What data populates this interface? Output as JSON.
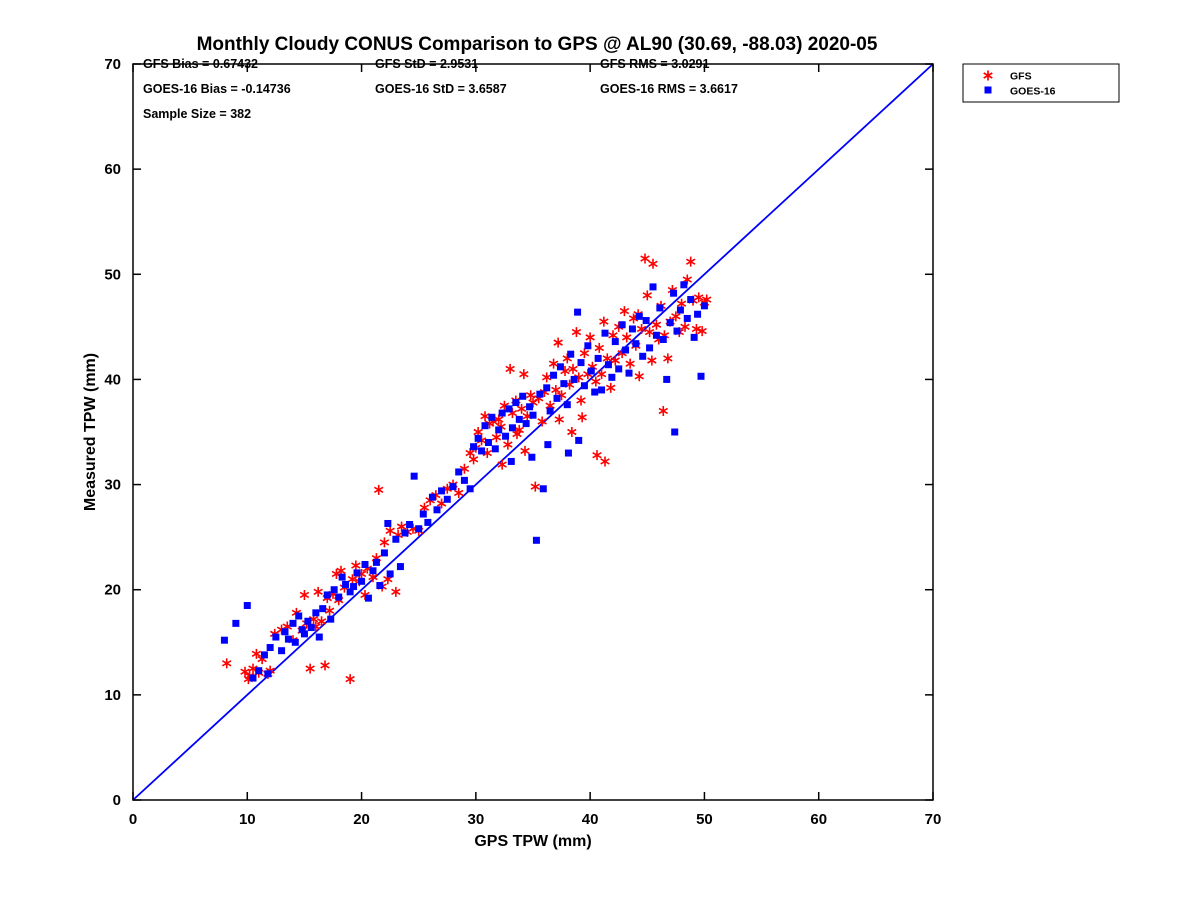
{
  "title": "Monthly Cloudy CONUS Comparison to GPS @ AL90 (30.69, -88.03) 2020-05",
  "stats": {
    "gfs_bias": "GFS Bias = 0.67432",
    "gfs_std": "GFS StD = 2.9531",
    "gfs_rms": "GFS RMS = 3.0291",
    "goes_bias": "GOES-16 Bias = -0.14736",
    "goes_std": "GOES-16 StD = 3.6587",
    "goes_rms": "GOES-16 RMS = 3.6617",
    "sample_size": "Sample Size = 382"
  },
  "axes": {
    "xlabel": "GPS TPW (mm)",
    "ylabel": "Measured TPW (mm)"
  },
  "legend": {
    "items": [
      {
        "label": "GFS",
        "marker": "asterisk",
        "color": "#ff0000"
      },
      {
        "label": "GOES-16",
        "marker": "square",
        "color": "#0000ff"
      }
    ]
  },
  "colors": {
    "gfs": "#ff0000",
    "goes": "#0000ff",
    "identity_line": "#0000ff",
    "axis": "#000000"
  },
  "chart_data": {
    "type": "scatter",
    "title": "Monthly Cloudy CONUS Comparison to GPS @ AL90 (30.69, -88.03) 2020-05",
    "xlabel": "GPS TPW (mm)",
    "ylabel": "Measured TPW (mm)",
    "xlim": [
      0,
      70
    ],
    "ylim": [
      0,
      70
    ],
    "xticks": [
      0,
      10,
      20,
      30,
      40,
      50,
      60,
      70
    ],
    "yticks": [
      0,
      10,
      20,
      30,
      40,
      50,
      60,
      70
    ],
    "grid": false,
    "legend_position": "top-right-outside",
    "sample_size": 382,
    "stats": {
      "gfs": {
        "bias": 0.67432,
        "std": 2.9531,
        "rms": 3.0291
      },
      "goes16": {
        "bias": -0.14736,
        "std": 3.6587,
        "rms": 3.6617
      }
    },
    "reference_line": {
      "from": [
        0,
        0
      ],
      "to": [
        70,
        70
      ],
      "color": "#0000ff"
    },
    "series": [
      {
        "name": "GFS",
        "marker": "asterisk",
        "color": "#ff0000",
        "points": [
          [
            9.8,
            12.2
          ],
          [
            10.2,
            11.8
          ],
          [
            10.5,
            12.5
          ],
          [
            11,
            12.1
          ],
          [
            11.3,
            13.4
          ],
          [
            10.8,
            13.9
          ],
          [
            12,
            12.3
          ],
          [
            12.4,
            15.8
          ],
          [
            8.2,
            13
          ],
          [
            10.1,
            11.5
          ],
          [
            11.8,
            12
          ],
          [
            13,
            16.2
          ],
          [
            13.5,
            16.5
          ],
          [
            14,
            15.2
          ],
          [
            14.3,
            17.8
          ],
          [
            14.8,
            16.1
          ],
          [
            15,
            19.5
          ],
          [
            15.2,
            16.8
          ],
          [
            15.5,
            12.5
          ],
          [
            15.8,
            17.2
          ],
          [
            16,
            16.5
          ],
          [
            16.2,
            19.8
          ],
          [
            16.5,
            17
          ],
          [
            16.8,
            12.8
          ],
          [
            17,
            19.2
          ],
          [
            17.2,
            18
          ],
          [
            17.5,
            19.6
          ],
          [
            17.8,
            21.5
          ],
          [
            18,
            19
          ],
          [
            18.2,
            21.8
          ],
          [
            18.5,
            20.2
          ],
          [
            19,
            11.5
          ],
          [
            19.2,
            21
          ],
          [
            19.5,
            22.3
          ],
          [
            19.8,
            20.8
          ],
          [
            20,
            21.5
          ],
          [
            20.3,
            19.5
          ],
          [
            20.5,
            22
          ],
          [
            21,
            21.2
          ],
          [
            21.3,
            23
          ],
          [
            21.5,
            29.5
          ],
          [
            21.8,
            20.3
          ],
          [
            22,
            24.5
          ],
          [
            22.3,
            21
          ],
          [
            22.5,
            25.6
          ],
          [
            23,
            19.8
          ],
          [
            23.2,
            25.2
          ],
          [
            23.5,
            26
          ],
          [
            24,
            25.5
          ],
          [
            24.5,
            25.8
          ],
          [
            25,
            25.6
          ],
          [
            25.5,
            27.8
          ],
          [
            26,
            28.5
          ],
          [
            26.5,
            29
          ],
          [
            27,
            28.2
          ],
          [
            27.5,
            29.6
          ],
          [
            28,
            30
          ],
          [
            28.5,
            29.2
          ],
          [
            29,
            31.5
          ],
          [
            29.5,
            33
          ],
          [
            29.8,
            32.4
          ],
          [
            30,
            33.5
          ],
          [
            30.2,
            35
          ],
          [
            30.5,
            34.2
          ],
          [
            30.8,
            36.5
          ],
          [
            31,
            33
          ],
          [
            31.2,
            35.8
          ],
          [
            31.5,
            36
          ],
          [
            31.8,
            34.5
          ],
          [
            32,
            36.2
          ],
          [
            32.2,
            35.5
          ],
          [
            32.5,
            37.5
          ],
          [
            32.8,
            33.8
          ],
          [
            33,
            41
          ],
          [
            33.2,
            36.8
          ],
          [
            33.5,
            38
          ],
          [
            33.8,
            35.2
          ],
          [
            34,
            37.2
          ],
          [
            34.2,
            40.5
          ],
          [
            34.5,
            36.5
          ],
          [
            34.8,
            38.5
          ],
          [
            35,
            37.8
          ],
          [
            35.2,
            29.8
          ],
          [
            35.5,
            38.2
          ],
          [
            35.8,
            36
          ],
          [
            34.3,
            33.2
          ],
          [
            33.6,
            34.8
          ],
          [
            32.3,
            31.9
          ],
          [
            36,
            38.8
          ],
          [
            36.2,
            40.2
          ],
          [
            36.5,
            37.5
          ],
          [
            36.8,
            41.5
          ],
          [
            37,
            39
          ],
          [
            37.2,
            43.5
          ],
          [
            37.5,
            38.5
          ],
          [
            37.8,
            40.8
          ],
          [
            38,
            42
          ],
          [
            38.2,
            39.5
          ],
          [
            38.5,
            41
          ],
          [
            38.8,
            44.5
          ],
          [
            39,
            40.2
          ],
          [
            39.2,
            38
          ],
          [
            39.5,
            42.5
          ],
          [
            39.8,
            40.5
          ],
          [
            40,
            44
          ],
          [
            40.2,
            41.2
          ],
          [
            40.5,
            39.8
          ],
          [
            40.8,
            43
          ],
          [
            41,
            40.5
          ],
          [
            41.2,
            45.5
          ],
          [
            41.5,
            42
          ],
          [
            41.8,
            39.2
          ],
          [
            42,
            44.2
          ],
          [
            42.2,
            41.8
          ],
          [
            38.4,
            35
          ],
          [
            39.3,
            36.4
          ],
          [
            41.3,
            32.2
          ],
          [
            40.6,
            32.8
          ],
          [
            37.3,
            36.2
          ],
          [
            42.5,
            45
          ],
          [
            42.8,
            42.5
          ],
          [
            43,
            46.5
          ],
          [
            43.2,
            44
          ],
          [
            43.5,
            41.5
          ],
          [
            43.8,
            45.8
          ],
          [
            44,
            43.2
          ],
          [
            44.2,
            46.2
          ],
          [
            44.5,
            44.8
          ],
          [
            44.8,
            51.5
          ],
          [
            45,
            48
          ],
          [
            45.2,
            44.5
          ],
          [
            45.5,
            51
          ],
          [
            45.8,
            45.2
          ],
          [
            46,
            43.8
          ],
          [
            46.2,
            47
          ],
          [
            46.5,
            44.2
          ],
          [
            46.8,
            42
          ],
          [
            47,
            45.5
          ],
          [
            46.4,
            37
          ],
          [
            45.4,
            41.8
          ],
          [
            44.3,
            40.3
          ],
          [
            47.2,
            48.5
          ],
          [
            47.5,
            46
          ],
          [
            47.8,
            44.5
          ],
          [
            48,
            47.2
          ],
          [
            48.3,
            45
          ],
          [
            48.5,
            49.5
          ],
          [
            48.8,
            51.2
          ],
          [
            49,
            47.5
          ],
          [
            49.3,
            44.8
          ],
          [
            49.5,
            47.8
          ],
          [
            49.8,
            44.6
          ],
          [
            50,
            47.3
          ],
          [
            50.2,
            47.6
          ]
        ]
      },
      {
        "name": "GOES-16",
        "marker": "square",
        "color": "#0000ff",
        "points": [
          [
            8,
            15.2
          ],
          [
            9,
            16.8
          ],
          [
            10,
            18.5
          ],
          [
            10.5,
            11.6
          ],
          [
            11,
            12.3
          ],
          [
            11.5,
            13.8
          ],
          [
            11.8,
            12
          ],
          [
            12,
            14.5
          ],
          [
            12.5,
            15.5
          ],
          [
            13,
            14.2
          ],
          [
            13.3,
            16
          ],
          [
            13.6,
            15.3
          ],
          [
            14,
            16.8
          ],
          [
            14.2,
            15
          ],
          [
            14.5,
            17.5
          ],
          [
            14.8,
            16.2
          ],
          [
            15,
            15.8
          ],
          [
            15.3,
            17
          ],
          [
            15.6,
            16.4
          ],
          [
            16,
            17.8
          ],
          [
            16.3,
            15.5
          ],
          [
            16.6,
            18.2
          ],
          [
            17,
            19.5
          ],
          [
            17.3,
            17.2
          ],
          [
            17.6,
            20
          ],
          [
            18,
            19.3
          ],
          [
            18.3,
            21.2
          ],
          [
            18.6,
            20.5
          ],
          [
            19,
            19.8
          ],
          [
            19.3,
            20.3
          ],
          [
            19.6,
            21.6
          ],
          [
            20,
            20.8
          ],
          [
            20.3,
            22.4
          ],
          [
            20.6,
            19.2
          ],
          [
            21,
            21.8
          ],
          [
            21.3,
            22.6
          ],
          [
            21.6,
            20.4
          ],
          [
            22,
            23.5
          ],
          [
            22.3,
            26.3
          ],
          [
            22.5,
            21.5
          ],
          [
            23,
            24.8
          ],
          [
            23.4,
            22.2
          ],
          [
            23.8,
            25.4
          ],
          [
            24.2,
            26.2
          ],
          [
            24.6,
            30.8
          ],
          [
            25,
            25.8
          ],
          [
            25.4,
            27.2
          ],
          [
            25.8,
            26.4
          ],
          [
            26.2,
            28.8
          ],
          [
            26.6,
            27.6
          ],
          [
            27,
            29.4
          ],
          [
            27.5,
            28.6
          ],
          [
            28,
            29.8
          ],
          [
            28.5,
            31.2
          ],
          [
            29,
            30.4
          ],
          [
            29.5,
            29.6
          ],
          [
            29.8,
            33.6
          ],
          [
            30.2,
            34.4
          ],
          [
            30.5,
            33.2
          ],
          [
            30.8,
            35.6
          ],
          [
            31.1,
            34
          ],
          [
            31.4,
            36.4
          ],
          [
            31.7,
            33.4
          ],
          [
            32,
            35.2
          ],
          [
            32.3,
            36.8
          ],
          [
            32.6,
            34.6
          ],
          [
            32.9,
            37.2
          ],
          [
            33.2,
            35.4
          ],
          [
            33.5,
            37.8
          ],
          [
            33.8,
            36.2
          ],
          [
            34.1,
            38.4
          ],
          [
            34.4,
            35.8
          ],
          [
            34.7,
            37.4
          ],
          [
            35,
            36.6
          ],
          [
            35.3,
            24.7
          ],
          [
            35.6,
            38.6
          ],
          [
            35.9,
            29.6
          ],
          [
            36.2,
            39.2
          ],
          [
            36.5,
            37
          ],
          [
            36.8,
            40.4
          ],
          [
            37.1,
            38.2
          ],
          [
            37.4,
            41.2
          ],
          [
            37.7,
            39.6
          ],
          [
            38,
            37.6
          ],
          [
            38.3,
            42.4
          ],
          [
            38.6,
            40
          ],
          [
            38.9,
            46.4
          ],
          [
            39.2,
            41.6
          ],
          [
            39.5,
            39.4
          ],
          [
            39.8,
            43.2
          ],
          [
            40.1,
            40.8
          ],
          [
            40.4,
            38.8
          ],
          [
            40.7,
            42
          ],
          [
            41,
            39
          ],
          [
            41.3,
            44.4
          ],
          [
            41.6,
            41.4
          ],
          [
            41.9,
            40.2
          ],
          [
            42.2,
            43.6
          ],
          [
            42.5,
            41
          ],
          [
            42.8,
            45.2
          ],
          [
            43.1,
            42.8
          ],
          [
            43.4,
            40.6
          ],
          [
            43.7,
            44.8
          ],
          [
            44,
            43.4
          ],
          [
            44.3,
            46
          ],
          [
            44.6,
            42.2
          ],
          [
            44.9,
            45.6
          ],
          [
            45.2,
            43
          ],
          [
            45.5,
            48.8
          ],
          [
            45.8,
            44.2
          ],
          [
            46.1,
            46.8
          ],
          [
            46.4,
            43.8
          ],
          [
            46.7,
            40
          ],
          [
            47,
            45.4
          ],
          [
            47.3,
            48.2
          ],
          [
            47.6,
            44.6
          ],
          [
            47.9,
            46.6
          ],
          [
            48.2,
            49
          ],
          [
            48.5,
            45.8
          ],
          [
            48.8,
            47.6
          ],
          [
            49.1,
            44
          ],
          [
            49.4,
            46.2
          ],
          [
            49.7,
            40.3
          ],
          [
            50,
            47
          ],
          [
            38.1,
            33
          ],
          [
            39,
            34.2
          ],
          [
            36.3,
            33.8
          ],
          [
            34.9,
            32.6
          ],
          [
            33.1,
            32.2
          ],
          [
            47.4,
            35
          ]
        ]
      }
    ]
  }
}
